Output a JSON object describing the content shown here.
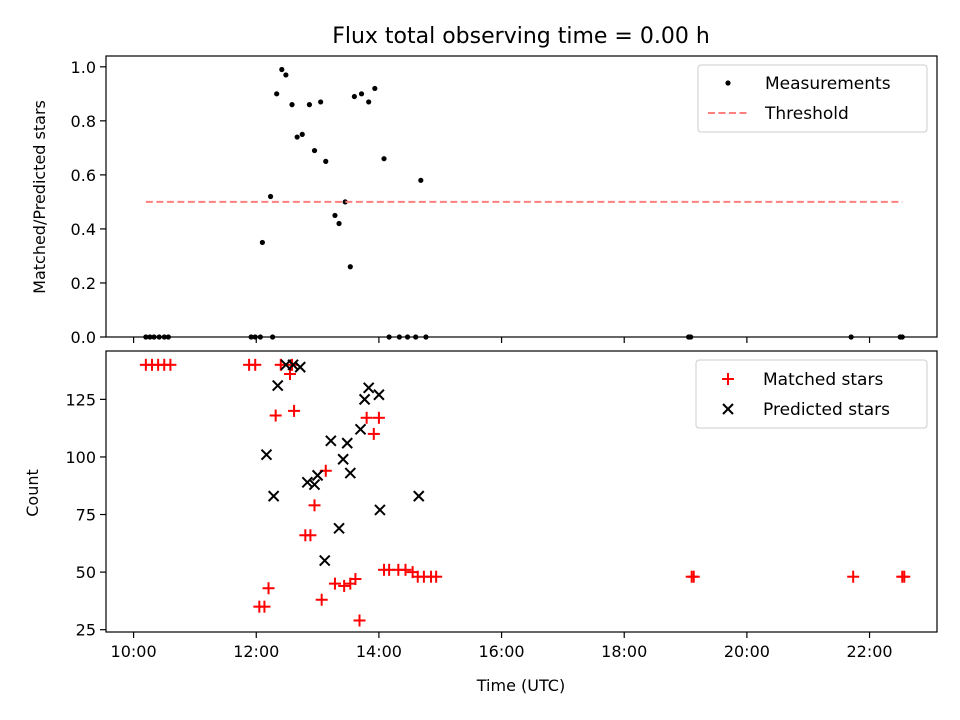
{
  "chart_data": [
    {
      "type": "scatter",
      "title": "Flux total observing time = 0.00 h",
      "xlabel": "",
      "ylabel": "Matched/Predicted stars",
      "xlim": [
        "09:33",
        "23:06"
      ],
      "ylim": [
        0,
        1.04
      ],
      "yticks": [
        "0.0",
        "0.2",
        "0.4",
        "0.6",
        "0.8",
        "1.0"
      ],
      "xticks_labels_shown": false,
      "grid": false,
      "legend_position": "top-right",
      "series": [
        {
          "name": "Measurements",
          "marker": "dot",
          "color": "#000000",
          "x": [
            "10:12",
            "10:16",
            "10:20",
            "10:25",
            "10:30",
            "10:34",
            "11:55",
            "11:59",
            "12:04",
            "12:16",
            "12:06",
            "12:14",
            "12:20",
            "12:25",
            "12:29",
            "12:35",
            "12:40",
            "12:45",
            "12:52",
            "12:57",
            "13:03",
            "13:08",
            "13:17",
            "13:21",
            "13:27",
            "13:32",
            "13:36",
            "13:43",
            "13:50",
            "13:56",
            "14:05",
            "14:10",
            "14:20",
            "14:28",
            "14:36",
            "14:41",
            "14:46",
            "19:03",
            "19:05",
            "21:42",
            "22:30",
            "22:32"
          ],
          "y": [
            0,
            0,
            0,
            0,
            0,
            0,
            0,
            0,
            0,
            0,
            0.35,
            0.52,
            0.9,
            0.99,
            0.97,
            0.86,
            0.74,
            0.75,
            0.86,
            0.69,
            0.87,
            0.65,
            0.45,
            0.42,
            0.5,
            0.26,
            0.89,
            0.9,
            0.87,
            0.92,
            0.66,
            0,
            0,
            0,
            0,
            0.58,
            0,
            0,
            0,
            0,
            0,
            0
          ]
        },
        {
          "name": "Threshold",
          "style": "dashed",
          "color": "#ff7f7f",
          "x": [
            "10:12",
            "22:32"
          ],
          "y": [
            0.5,
            0.5
          ]
        }
      ]
    },
    {
      "type": "scatter",
      "title": "",
      "xlabel": "Time (UTC)",
      "ylabel": "Count",
      "xlim": [
        "09:33",
        "23:06"
      ],
      "ylim": [
        24,
        146
      ],
      "yticks": [
        "25",
        "50",
        "75",
        "100",
        "125"
      ],
      "xticks": [
        "10:00",
        "12:00",
        "14:00",
        "16:00",
        "18:00",
        "20:00",
        "22:00"
      ],
      "grid": false,
      "legend_position": "top-right",
      "series": [
        {
          "name": "Matched stars",
          "marker": "plus",
          "color": "#ff0000",
          "x": [
            "10:12",
            "10:18",
            "10:24",
            "10:30",
            "10:36",
            "11:53",
            "11:59",
            "12:03",
            "12:08",
            "12:12",
            "12:19",
            "12:24",
            "12:33",
            "12:35",
            "12:37",
            "12:48",
            "12:53",
            "12:57",
            "13:04",
            "13:08",
            "13:17",
            "13:26",
            "13:32",
            "13:37",
            "13:41",
            "13:48",
            "13:55",
            "14:00",
            "14:05",
            "14:10",
            "14:19",
            "14:26",
            "14:33",
            "14:38",
            "14:44",
            "14:51",
            "14:56",
            "19:06",
            "19:08",
            "21:44",
            "22:32",
            "22:34"
          ],
          "y": [
            140,
            140,
            140,
            140,
            140,
            140,
            140,
            35,
            35,
            43,
            118,
            140,
            136,
            140,
            120,
            66,
            66,
            79,
            38,
            94,
            45,
            44,
            45,
            47,
            29,
            117,
            110,
            117,
            51,
            51,
            51,
            51,
            50,
            48,
            48,
            48,
            48,
            48,
            48,
            48,
            48,
            48
          ]
        },
        {
          "name": "Predicted stars",
          "marker": "x",
          "color": "#000000",
          "x": [
            "12:10",
            "12:17",
            "12:21",
            "12:29",
            "12:36",
            "12:43",
            "12:50",
            "12:57",
            "13:00",
            "13:07",
            "13:13",
            "13:21",
            "13:25",
            "13:29",
            "13:32",
            "13:42",
            "13:46",
            "13:50",
            "14:00",
            "14:01",
            "14:39"
          ],
          "y": [
            101,
            83,
            131,
            140,
            140,
            139,
            89,
            88,
            92,
            55,
            107,
            69,
            99,
            106,
            93,
            112,
            125,
            130,
            127,
            77,
            83
          ]
        }
      ]
    }
  ]
}
